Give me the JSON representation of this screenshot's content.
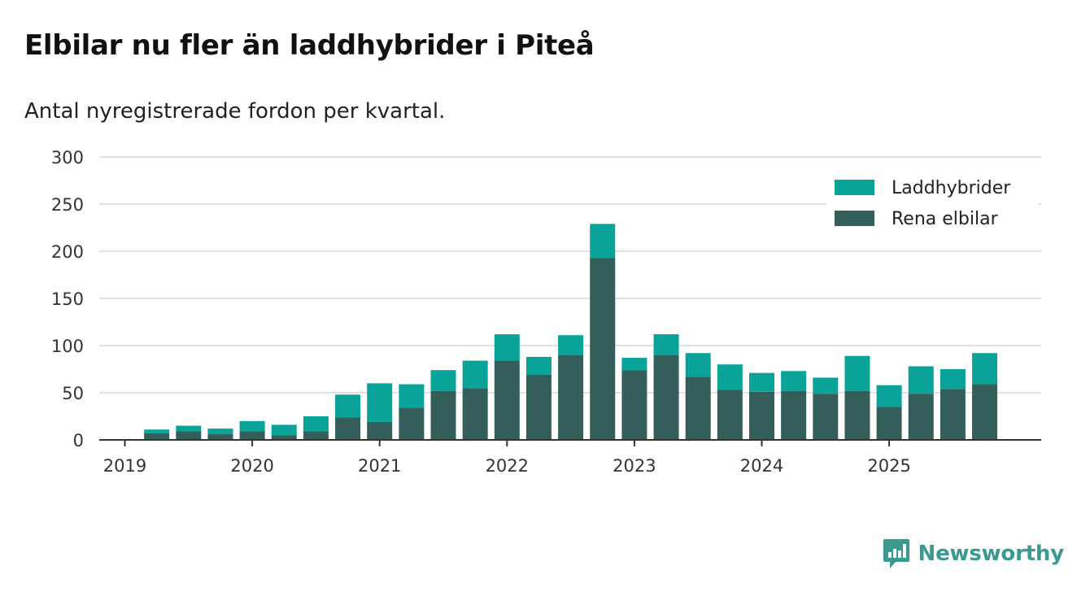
{
  "title": "Elbilar nu fler än laddhybrider i Piteå",
  "subtitle": "Antal nyregistrerade fordon per kvartal.",
  "brand": "Newsworthy",
  "colors": {
    "laddhybrider": "#0aa39a",
    "rena_elbilar": "#345e5a",
    "grid": "#d9d9d9",
    "axis": "#333333",
    "brand": "#3a9a90"
  },
  "chart_data": {
    "type": "bar",
    "stacked": true,
    "title": "Elbilar nu fler än laddhybrider i Piteå",
    "subtitle": "Antal nyregistrerade fordon per kvartal.",
    "xlabel": "",
    "ylabel": "",
    "ylim": [
      0,
      300
    ],
    "yticks": [
      "0",
      "50",
      "100",
      "150",
      "200",
      "250",
      "300"
    ],
    "xticks": [
      "2019",
      "2020",
      "2021",
      "2022",
      "2023",
      "2024",
      "2025"
    ],
    "legend_position": "top-right",
    "grid": true,
    "categories": [
      "2019 Q1",
      "2019 Q2",
      "2019 Q3",
      "2019 Q4",
      "2020 Q1",
      "2020 Q2",
      "2020 Q3",
      "2020 Q4",
      "2021 Q1",
      "2021 Q2",
      "2021 Q3",
      "2021 Q4",
      "2022 Q1",
      "2022 Q2",
      "2022 Q3",
      "2022 Q4",
      "2023 Q1",
      "2023 Q2",
      "2023 Q3",
      "2023 Q4",
      "2024 Q1",
      "2024 Q2",
      "2024 Q3",
      "2024 Q4",
      "2025 Q1",
      "2025 Q2",
      "2025 Q3",
      "2025 Q4"
    ],
    "series": [
      {
        "name": "Rena elbilar",
        "values": [
          0,
          7,
          9,
          6,
          9,
          5,
          9,
          24,
          19,
          34,
          52,
          55,
          84,
          69,
          90,
          193,
          74,
          90,
          67,
          53,
          51,
          52,
          49,
          52,
          35,
          49,
          54,
          59
        ]
      },
      {
        "name": "Laddhybrider",
        "values": [
          0,
          4,
          6,
          6,
          11,
          11,
          16,
          24,
          41,
          25,
          22,
          29,
          28,
          19,
          21,
          36,
          13,
          22,
          25,
          27,
          20,
          21,
          17,
          37,
          23,
          29,
          21,
          33
        ]
      }
    ]
  }
}
